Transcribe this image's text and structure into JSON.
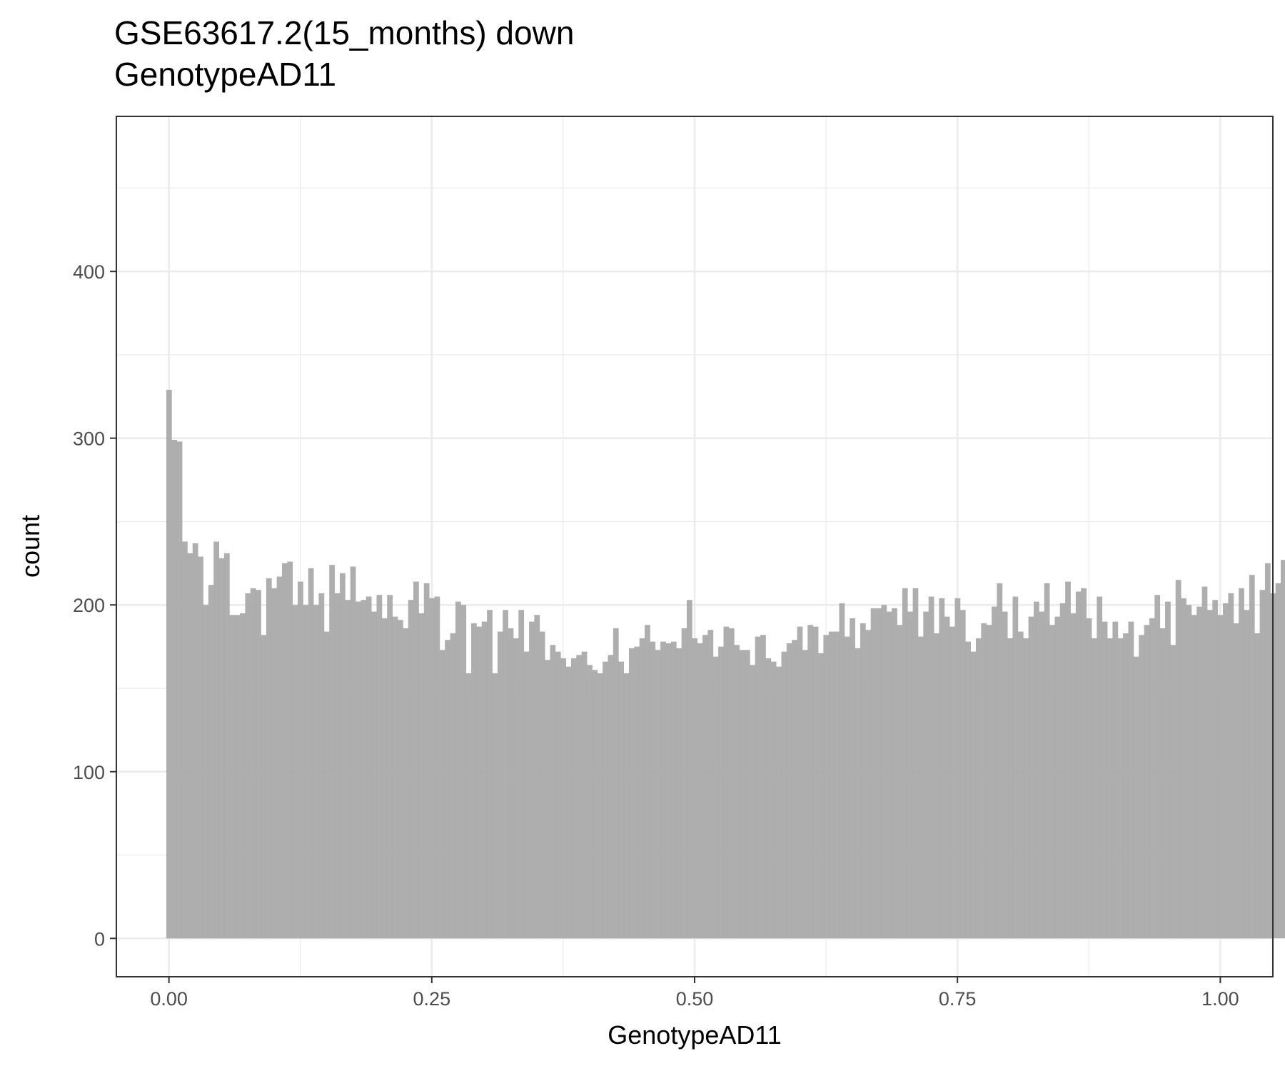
{
  "chart_data": {
    "type": "bar",
    "title": "GSE63617.2(15_months) down",
    "subtitle": "GenotypeAD11",
    "xlabel": "GenotypeAD11",
    "ylabel": "count",
    "xlim": [
      -0.05,
      1.05
    ],
    "ylim": [
      -23,
      493
    ],
    "x_ticks": [
      0,
      0.25,
      0.5,
      0.75,
      1
    ],
    "x_tick_labels": [
      "0.00",
      "0.25",
      "0.50",
      "0.75",
      "1.00"
    ],
    "y_ticks": [
      0,
      100,
      200,
      300,
      400
    ],
    "y_tick_labels": [
      "0",
      "100",
      "200",
      "300",
      "400"
    ],
    "grid": true,
    "bin_width": 0.005,
    "bins_start": -0.0025,
    "series": [
      {
        "color": "#aaaaaa",
        "values": [
          329,
          299,
          298,
          238,
          231,
          237,
          229,
          200,
          212,
          238,
          228,
          231,
          194,
          194,
          195,
          207,
          210,
          209,
          182,
          216,
          210,
          217,
          225,
          226,
          200,
          214,
          200,
          222,
          200,
          207,
          184,
          224,
          207,
          219,
          203,
          223,
          202,
          203,
          205,
          196,
          206,
          192,
          206,
          193,
          191,
          186,
          203,
          214,
          195,
          213,
          204,
          205,
          173,
          179,
          183,
          202,
          200,
          159,
          189,
          187,
          190,
          197,
          159,
          184,
          197,
          186,
          180,
          197,
          172,
          190,
          194,
          184,
          167,
          176,
          172,
          168,
          163,
          168,
          170,
          172,
          164,
          161,
          159,
          166,
          170,
          186,
          166,
          159,
          174,
          175,
          180,
          188,
          178,
          173,
          178,
          177,
          178,
          174,
          186,
          203,
          180,
          177,
          182,
          185,
          169,
          175,
          187,
          186,
          176,
          173,
          173,
          164,
          181,
          182,
          168,
          166,
          163,
          172,
          177,
          179,
          187,
          173,
          188,
          187,
          171,
          182,
          184,
          184,
          201,
          181,
          192,
          174,
          189,
          185,
          198,
          198,
          200,
          196,
          198,
          188,
          210,
          196,
          210,
          181,
          196,
          205,
          183,
          204,
          193,
          187,
          204,
          197,
          178,
          172,
          180,
          189,
          188,
          199,
          213,
          196,
          180,
          205,
          184,
          180,
          193,
          202,
          196,
          213,
          188,
          193,
          201,
          214,
          195,
          208,
          210,
          192,
          180,
          205,
          190,
          180,
          190,
          180,
          183,
          190,
          169,
          182,
          188,
          192,
          206,
          186,
          202,
          176,
          215,
          204,
          200,
          194,
          199,
          211,
          197,
          203,
          194,
          201,
          207,
          189,
          210,
          197,
          218,
          183,
          209,
          225,
          207,
          213,
          227,
          205,
          206,
          207,
          226,
          210,
          197,
          212,
          206,
          187,
          208,
          171,
          191,
          208,
          218,
          202,
          158,
          196,
          202,
          207,
          219,
          224,
          222,
          222,
          219,
          224,
          216,
          193,
          193,
          191,
          192,
          190,
          213,
          210,
          187,
          190,
          210,
          204,
          226,
          223,
          230,
          232,
          234,
          204,
          216,
          217,
          202,
          245,
          246,
          253,
          262,
          278,
          292,
          284,
          315,
          349,
          460,
          470
        ]
      }
    ]
  }
}
